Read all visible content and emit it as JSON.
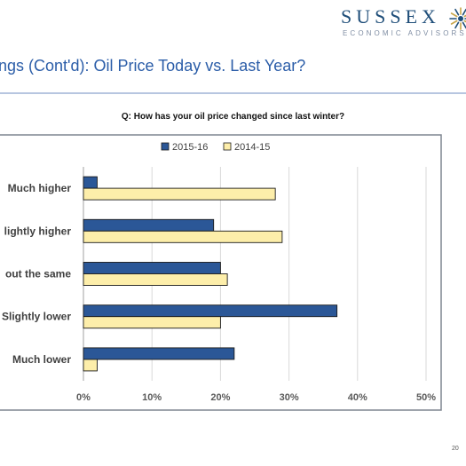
{
  "brand": {
    "name": "SUSSEX",
    "tagline": "ECONOMIC ADVISORS",
    "logo_icon": "sun-icon",
    "colors": {
      "navy": "#1f4e79",
      "gold": "#c9a64a"
    }
  },
  "slide": {
    "title": "ngs (Cont'd): Oil Price Today vs. Last Year?",
    "page_number": "20"
  },
  "chart_data": {
    "type": "bar",
    "orientation": "horizontal",
    "title": "Q: How has your oil price changed since last winter?",
    "categories": [
      "Much higher",
      "lightly higher",
      "out the same",
      "Slightly lower",
      "Much lower"
    ],
    "series": [
      {
        "name": "2015-16",
        "values": [
          2,
          19,
          20,
          37,
          22
        ],
        "color": "#2b5797"
      },
      {
        "name": "2014-15",
        "values": [
          28,
          29,
          21,
          20,
          2
        ],
        "color": "#fdeeaa"
      }
    ],
    "x_ticks": [
      "0%",
      "10%",
      "20%",
      "30%",
      "40%",
      "50%"
    ],
    "xlim": [
      0,
      50
    ],
    "legend": "top-center",
    "grid": true
  }
}
